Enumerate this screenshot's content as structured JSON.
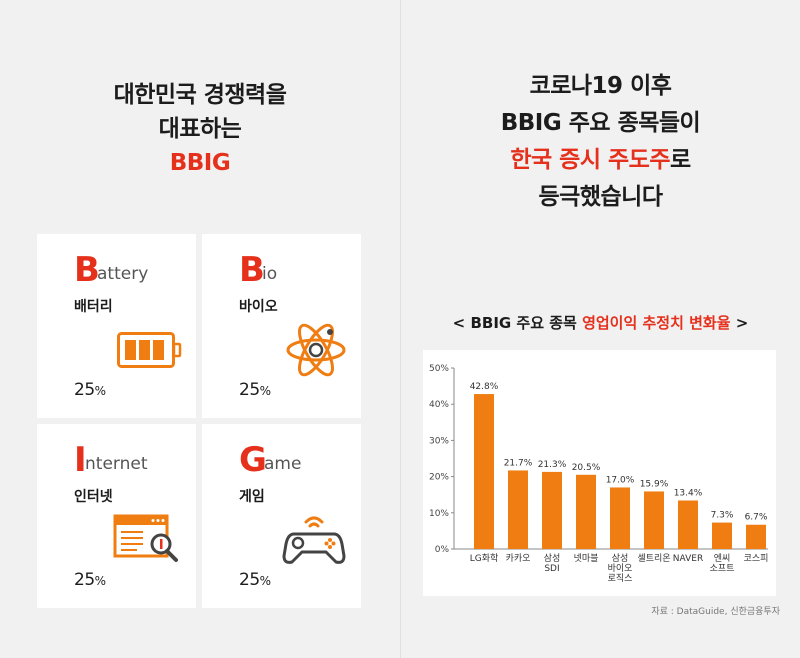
{
  "left": {
    "headline": {
      "line1": "대한민국 경쟁력을",
      "line2": "대표하는",
      "line3": "BBIG"
    },
    "cards": [
      {
        "big": "B",
        "rest": "attery",
        "kor": "배터리",
        "pct": "25",
        "unit": "%",
        "icon": "battery-icon"
      },
      {
        "big": "B",
        "rest": "io",
        "kor": "바이오",
        "pct": "25",
        "unit": "%",
        "icon": "atom-icon"
      },
      {
        "big": "I",
        "rest": "nternet",
        "kor": "인터넷",
        "pct": "25",
        "unit": "%",
        "icon": "browser-search-icon"
      },
      {
        "big": "G",
        "rest": "ame",
        "kor": "게임",
        "pct": "25",
        "unit": "%",
        "icon": "gamepad-icon"
      }
    ]
  },
  "right": {
    "headline": {
      "line1": "코로나19 이후",
      "line2": "BBIG 주요 종목들이",
      "line3_red": "한국 증시 주도주",
      "line3_black": "로",
      "line4": "등극했습니다"
    },
    "chart_title": {
      "prefix": "< BBIG 주요 종목 ",
      "red": "영업이익 추정치 변화율",
      "suffix": " >"
    },
    "source": "자료 : DataGuide, 신한금융투자"
  },
  "colors": {
    "accent": "#e5301c",
    "bar": "#ef7d12",
    "background": "#f1f1f1"
  },
  "chart_data": {
    "type": "bar",
    "categories": [
      "LG화학",
      "카카오",
      "삼성\nSDI",
      "넷마블",
      "삼성\n바이오\n로직스",
      "셀트리온",
      "NAVER",
      "엔씨\n소프트",
      "코스피"
    ],
    "values": [
      42.8,
      21.7,
      21.3,
      20.5,
      17.0,
      15.9,
      13.4,
      7.3,
      6.7
    ],
    "value_labels": [
      "42.8%",
      "21.7%",
      "21.3%",
      "20.5%",
      "17.0%",
      "15.9%",
      "13.4%",
      "7.3%",
      "6.7%"
    ],
    "yticks": [
      "0%",
      "10%",
      "20%",
      "30%",
      "40%",
      "50%"
    ],
    "ylim": [
      0,
      50
    ],
    "title": "영업이익 추정치 변화율",
    "grid": false
  }
}
